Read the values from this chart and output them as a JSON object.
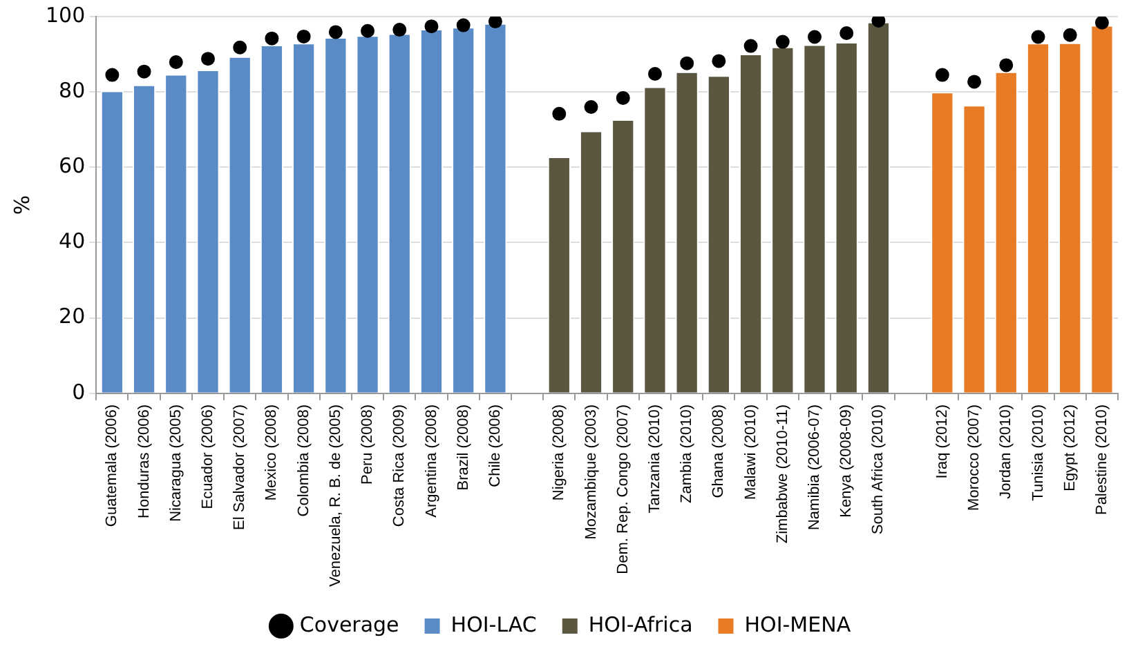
{
  "chart_data": {
    "type": "bar",
    "ylabel": "%",
    "categories": [
      "Guatemala (2006)",
      "Honduras (2006)",
      "Nicaragua (2005)",
      "Ecuador (2006)",
      "El Salvador (2007)",
      "Mexico (2008)",
      "Colombia (2008)",
      "Venezuela, R. B. de (2005)",
      "Peru (2008)",
      "Costa Rica (2009)",
      "Argentina (2008)",
      "Brazil (2008)",
      "Chile (2006)",
      null,
      "Nigeria (2008)",
      "Mozambique (2003)",
      "Dem. Rep. Congo (2007)",
      "Tanzania (2010)",
      "Zambia (2010)",
      "Ghana (2008)",
      "Malawi (2010)",
      "Zimbabwe (2010-11)",
      "Namibia (2006-07)",
      "Kenya (2008-09)",
      "South Africa (2010)",
      null,
      "Iraq (2012)",
      "Morocco (2007)",
      "Jordan (2010)",
      "Tunisia (2010)",
      "Egypt (2012)",
      "Palestine (2010)"
    ],
    "series": [
      {
        "name": "HOI-LAC",
        "color": "#5b8bc6",
        "values": [
          80.3,
          81.9,
          84.7,
          85.9,
          89.4,
          92.5,
          93.0,
          94.5,
          95.0,
          95.5,
          96.7,
          97.2,
          98.2,
          null,
          null,
          null,
          null,
          null,
          null,
          null,
          null,
          null,
          null,
          null,
          null,
          null,
          null,
          null,
          null,
          null,
          null,
          null
        ]
      },
      {
        "name": "HOI-Africa",
        "color": "#5a5640",
        "values": [
          null,
          null,
          null,
          null,
          null,
          null,
          null,
          null,
          null,
          null,
          null,
          null,
          null,
          null,
          62.8,
          69.7,
          72.7,
          81.4,
          85.4,
          84.4,
          90.1,
          92.0,
          92.6,
          93.2,
          98.6,
          null,
          null,
          null,
          null,
          null,
          null,
          null
        ]
      },
      {
        "name": "HOI-MENA",
        "color": "#e87b25",
        "values": [
          null,
          null,
          null,
          null,
          null,
          null,
          null,
          null,
          null,
          null,
          null,
          null,
          null,
          null,
          null,
          null,
          null,
          null,
          null,
          null,
          null,
          null,
          null,
          null,
          null,
          null,
          80.0,
          76.5,
          85.4,
          93.0,
          93.1,
          97.7
        ]
      },
      {
        "name": "Coverage",
        "type": "scatter",
        "color": "#000000",
        "marker": "circle",
        "values": [
          84.5,
          85.4,
          87.9,
          88.8,
          91.8,
          94.2,
          94.7,
          95.9,
          96.2,
          96.5,
          97.4,
          97.7,
          98.7,
          null,
          74.2,
          76.0,
          78.4,
          84.8,
          87.6,
          88.2,
          92.2,
          93.3,
          94.6,
          95.6,
          98.9,
          null,
          84.5,
          82.7,
          87.1,
          94.6,
          95.1,
          98.4
        ]
      }
    ],
    "ylim": [
      0,
      100
    ],
    "yticks": [
      0,
      20,
      40,
      60,
      80,
      100
    ],
    "grid": "y",
    "legend": "bottom"
  }
}
